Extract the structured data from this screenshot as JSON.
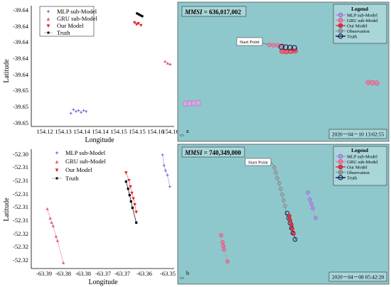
{
  "plots": [
    {
      "id": "top-left",
      "xlabel": "Longitude",
      "ylabel": "Latitude",
      "xticks": [
        "154.12",
        "154.13",
        "154.14",
        "154.14",
        "154.15",
        "154.15",
        "154.16",
        "154.16"
      ],
      "yticks": [
        "-39.64",
        "-39.64",
        "-39.64",
        "-39.64",
        "-39.64",
        "-39.65",
        "-39.65",
        "-39.65"
      ],
      "legend": [
        "MLP sub-Model",
        "GRU sub-Model",
        "Our Model",
        "Truth"
      ]
    },
    {
      "id": "bottom-left",
      "xlabel": "Longitude",
      "ylabel": "Latitude",
      "xticks": [
        "-63.39",
        "-63.38",
        "-63.38",
        "-63.37",
        "-63.37",
        "-63.36",
        "-63.35"
      ],
      "yticks": [
        "-52.30",
        "-52.31",
        "-52.31",
        "-52.31",
        "-52.31",
        "-52.31",
        "-52.32",
        "-52.32",
        "-52.32"
      ],
      "legend": [
        "MLP sub-Model",
        "GRU sub-Model",
        "Our Model",
        "Truth"
      ]
    }
  ],
  "maps": [
    {
      "id": "map-a",
      "mmsi_label": "MMSI",
      "mmsi_value": "636,017,002",
      "start_label": "Start Point",
      "panel_letter": "a",
      "timestamp": "2020－04－10  13:02:55",
      "legend_title": "Legend",
      "legend_items": [
        "MLP sub-Model",
        "GRU sub-Model",
        "Our Model",
        "Observation",
        "Truth"
      ]
    },
    {
      "id": "map-b",
      "mmsi_label": "MMSI",
      "mmsi_value": "740,349,000",
      "start_label": "Start Point",
      "panel_letter": "b",
      "timestamp": "2020－04－08  05:42:20",
      "legend_title": "Legend",
      "legend_items": [
        "MLP sub-Model",
        "GRU sub-Model",
        "Our Model",
        "Observation",
        "Truth"
      ]
    }
  ],
  "colors": {
    "mlp": "#7b6fd6",
    "gru": "#e0607a",
    "ours": "#e8202a",
    "truth": "#000000",
    "sea": "#8ec8cc",
    "mlp_map": "#b090e0",
    "gru_map": "#e87aa0",
    "ours_map": "#e83040",
    "obs_map": "#8a9aa0",
    "truth_map": "#1a1a50"
  },
  "chart_data": [
    {
      "type": "scatter",
      "title": "",
      "xlabel": "Longitude",
      "ylabel": "Latitude",
      "series": [
        {
          "name": "MLP sub-Model",
          "points": [
            [
              154.123,
              -39.6512
            ],
            [
              154.124,
              -39.6508
            ],
            [
              154.125,
              -39.651
            ],
            [
              154.126,
              -39.6509
            ],
            [
              154.127,
              -39.6511
            ],
            [
              154.128,
              -39.6509
            ],
            [
              154.129,
              -39.651
            ]
          ]
        },
        {
          "name": "GRU sub-Model",
          "points": [
            [
              154.16,
              -39.6455
            ],
            [
              154.161,
              -39.6457
            ],
            [
              154.162,
              -39.6458
            ]
          ]
        },
        {
          "name": "Our Model",
          "points": [
            [
              154.148,
              -39.6412
            ],
            [
              154.1488,
              -39.6414
            ],
            [
              154.1495,
              -39.6413
            ],
            [
              154.1505,
              -39.6415
            ]
          ]
        },
        {
          "name": "Truth",
          "points": [
            [
              154.149,
              -39.6402
            ],
            [
              154.1497,
              -39.6403
            ],
            [
              154.1503,
              -39.6404
            ],
            [
              154.151,
              -39.6405
            ]
          ]
        }
      ]
    },
    {
      "type": "scatter",
      "title": "",
      "xlabel": "Longitude",
      "ylabel": "Latitude",
      "series": [
        {
          "name": "MLP sub-Model",
          "points": [
            [
              -63.353,
              -52.3045
            ],
            [
              -63.3525,
              -52.307
            ],
            [
              -63.352,
              -52.3082
            ],
            [
              -63.3513,
              -52.3093
            ],
            [
              -63.3505,
              -52.312
            ]
          ]
        },
        {
          "name": "GRU sub-Model",
          "points": [
            [
              -63.3925,
              -52.3173
            ],
            [
              -63.3915,
              -52.3195
            ],
            [
              -63.391,
              -52.3205
            ],
            [
              -63.3905,
              -52.3213
            ],
            [
              -63.3895,
              -52.3238
            ],
            [
              -63.389,
              -52.3248
            ],
            [
              -63.387,
              -52.33
            ]
          ]
        },
        {
          "name": "Our Model",
          "points": [
            [
              -63.3655,
              -52.3087
            ],
            [
              -63.3645,
              -52.3105
            ],
            [
              -63.364,
              -52.312
            ],
            [
              -63.3635,
              -52.3135
            ],
            [
              -63.363,
              -52.3148
            ],
            [
              -63.3625,
              -52.3162
            ],
            [
              -63.362,
              -52.318
            ]
          ]
        },
        {
          "name": "Truth",
          "points": [
            [
              -63.3655,
              -52.3108
            ],
            [
              -63.3648,
              -52.3125
            ],
            [
              -63.3643,
              -52.314
            ],
            [
              -63.3638,
              -52.3155
            ],
            [
              -63.3633,
              -52.317
            ],
            [
              -63.362,
              -52.3205
            ]
          ]
        }
      ]
    }
  ]
}
